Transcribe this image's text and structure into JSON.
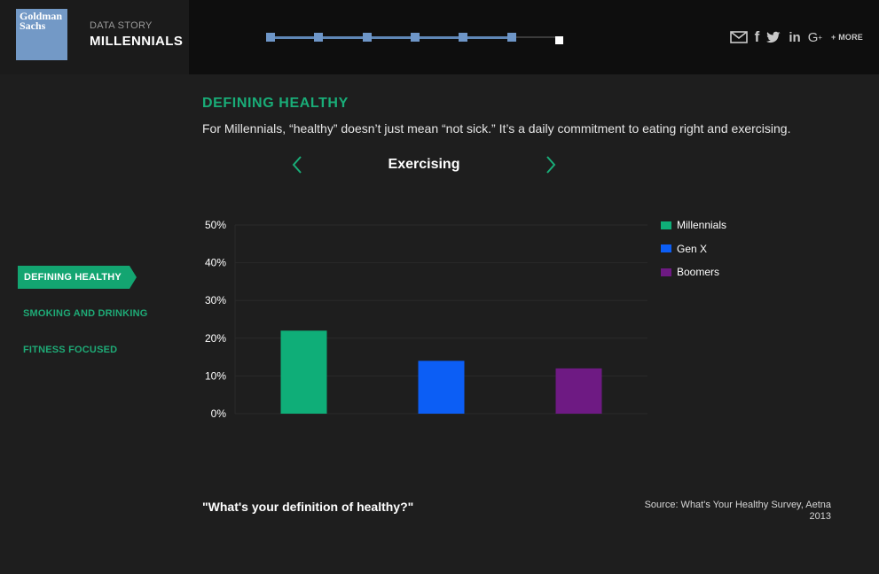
{
  "header": {
    "logo_lines": [
      "Goldman",
      "Sachs"
    ],
    "story_label": "DATA STORY",
    "story_title": "MILLENNIALS",
    "progress": {
      "steps_total": 7,
      "current_step": 7
    },
    "share": {
      "icons": [
        "email-icon",
        "facebook-icon",
        "twitter-icon",
        "linkedin-icon",
        "google-plus-icon"
      ],
      "more_label": "+ MORE"
    }
  },
  "nav": {
    "items": [
      {
        "label": "DEFINING HEALTHY",
        "active": true
      },
      {
        "label": "SMOKING AND DRINKING",
        "active": false
      },
      {
        "label": "FITNESS FOCUSED",
        "active": false
      }
    ]
  },
  "main": {
    "title": "DEFINING HEALTHY",
    "description": "For Millennials, “healthy” doesn’t just mean “not sick.” It’s a daily commitment to eating right and exercising.",
    "metric_title": "Exercising",
    "quote": "\"What's your definition of healthy?\"",
    "source_lines": [
      "Source: What's Your Healthy Survey, Aetna",
      "2013"
    ]
  },
  "colors": {
    "accent": "#19ad78",
    "millennials": "#0fae78",
    "genx": "#0c5ef5",
    "boomers": "#6e1a83",
    "progress": "#6e96c8"
  },
  "chart_data": {
    "type": "bar",
    "title": "Exercising",
    "categories": [
      "Millennials",
      "Gen X",
      "Boomers"
    ],
    "values": [
      22,
      14,
      12
    ],
    "colors": [
      "#0fae78",
      "#0c5ef5",
      "#6e1a83"
    ],
    "ylim": [
      0,
      50
    ],
    "yticks": [
      0,
      10,
      20,
      30,
      40,
      50
    ],
    "ytick_labels": [
      "0%",
      "10%",
      "20%",
      "30%",
      "40%",
      "50%"
    ],
    "legend_position": "right",
    "grid": true
  }
}
